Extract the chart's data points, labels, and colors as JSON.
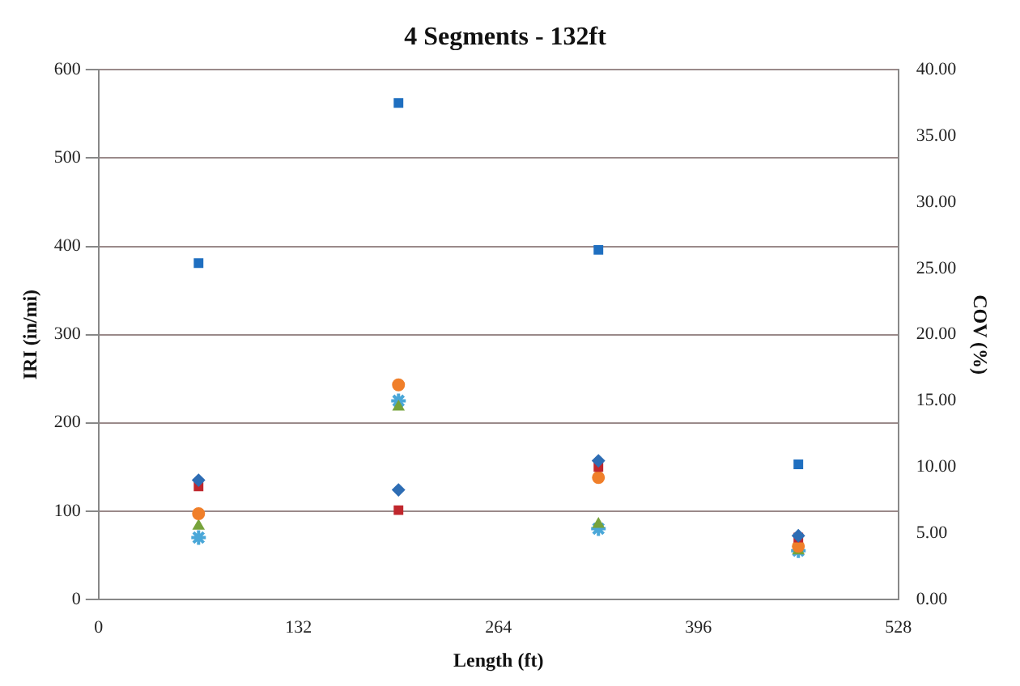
{
  "chart_data": {
    "type": "scatter",
    "title": "4 Segments - 132ft",
    "xlabel": "Length (ft)",
    "ylabel": "IRI (in/mi)",
    "y2label": "COV (%)",
    "x": [
      66,
      198,
      330,
      462
    ],
    "series": [
      {
        "color": "#2e6db4",
        "marker": "diamond",
        "values": [
          135,
          124,
          157,
          72
        ]
      },
      {
        "color": "#c0272d",
        "marker": "square",
        "values": [
          128,
          101,
          150,
          70
        ]
      },
      {
        "color": "#f07f2a",
        "marker": "circle",
        "values": [
          97,
          243,
          138,
          60
        ]
      },
      {
        "color": "#77a33b",
        "marker": "triangle",
        "values": [
          83,
          218,
          85,
          55
        ]
      },
      {
        "color": "#4aa7d8",
        "marker": "cross",
        "values": [
          70,
          225,
          80,
          55
        ]
      },
      {
        "color": "#1f6fc0",
        "marker": "square",
        "axis": "y2",
        "values": [
          25.4,
          37.5,
          26.4,
          10.2
        ]
      }
    ],
    "xlim": [
      0,
      528
    ],
    "xticks": [
      0,
      132,
      264,
      396,
      528
    ],
    "ylim": [
      0,
      600
    ],
    "yticks": [
      0,
      100,
      200,
      300,
      400,
      500,
      600
    ],
    "y2lim": [
      0,
      40
    ],
    "y2ticks": [
      {
        "value": 0,
        "label": "0.00"
      },
      {
        "value": 5,
        "label": "5.00"
      },
      {
        "value": 10,
        "label": "10.00"
      },
      {
        "value": 15,
        "label": "15.00"
      },
      {
        "value": 20,
        "label": "20.00"
      },
      {
        "value": 25,
        "label": "25.00"
      },
      {
        "value": 30,
        "label": "30.00"
      },
      {
        "value": 35,
        "label": "35.00"
      },
      {
        "value": 40,
        "label": "40.00"
      }
    ],
    "grid": "y",
    "legend": false
  }
}
